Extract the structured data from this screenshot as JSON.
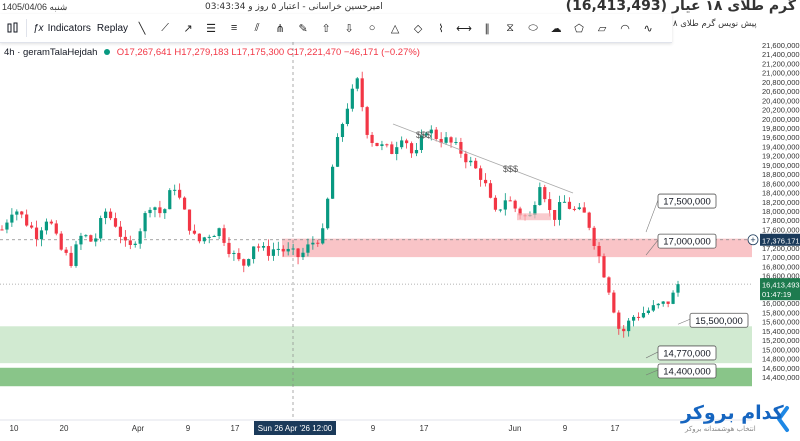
{
  "topbar": {
    "date_text": "1405/04/06 شنبه",
    "time_text": "03:43:34 ت",
    "user_text": "امیرحسین خراسانی - اعتبار ۵ روز و 03:43:34",
    "title_text": "(16,413,493) گرم طلای ۱۸ عیار"
  },
  "toolbar": {
    "indicators_label": "Indicators",
    "replay_label": "Replay",
    "subtitle": "پیش نویس گرم طلای ۸",
    "tools": [
      "cursor-icon",
      "trend-line-icon",
      "ray-icon",
      "horizontal-lines-icon",
      "fib-icon",
      "channel-icon",
      "pitchfork-icon",
      "brush-icon",
      "arrow-up-icon",
      "arrow-down-icon",
      "circle-icon",
      "triangle-icon",
      "shapes-icon",
      "path-icon",
      "extended-line-icon",
      "parallel-icon",
      "measure-icon",
      "ellipse-icon",
      "cloud-icon",
      "polygon-icon",
      "shape-icon",
      "arc-icon",
      "curve-icon"
    ]
  },
  "symbol": {
    "name": "4h · geramTalaHejdah",
    "ohlc": "O17,267,641  H17,279,183  L17,175,300  C17,221,470  −46,171 (−0.27%)"
  },
  "colors": {
    "up": "#089981",
    "down": "#f23645",
    "resistance_zone": "#f7b5b9",
    "support_zone_light": "#cce8cc",
    "support_zone_dark": "#7cbf7c",
    "price_badge": "#1b3a5a",
    "last_price_badge": "#1e7b4f"
  },
  "chart_data": {
    "type": "candlestick",
    "y_axis": {
      "min": 14200000,
      "max": 22000000,
      "ticks": [
        21600000,
        21400000,
        21200000,
        21000000,
        20800000,
        20600000,
        20400000,
        20200000,
        20000000,
        19800000,
        19600000,
        19400000,
        19200000,
        19000000,
        18800000,
        18600000,
        18400000,
        18200000,
        18000000,
        17800000,
        17600000,
        17400000,
        17200000,
        17000000,
        16800000,
        16600000,
        16400000,
        16200000,
        16000000,
        15800000,
        15600000,
        15400000,
        15200000,
        15000000,
        14800000,
        14600000,
        14400000
      ],
      "tick_labels": [
        "21,600,000",
        "21,400,000",
        "21,200,000",
        "21,000,000",
        "20,800,000",
        "20,600,000",
        "20,400,000",
        "20,200,000",
        "20,000,000",
        "19,800,000",
        "19,600,000",
        "19,400,000",
        "19,200,000",
        "19,000,000",
        "18,800,000",
        "18,600,000",
        "18,400,000",
        "18,200,000",
        "18,000,000",
        "17,800,000",
        "17,600,000",
        "17,400,000",
        "17,200,000",
        "17,000,000",
        "16,800,000",
        "16,600,000",
        "16,400,000",
        "16,200,000",
        "16,000,000",
        "15,800,000",
        "15,600,000",
        "15,400,000",
        "15,200,000",
        "15,000,000",
        "14,800,000",
        "14,600,000",
        "14,400,000"
      ]
    },
    "x_axis_labels": [
      "10",
      "20",
      "Apr",
      "9",
      "17",
      "Sun 26 Apr '26  12:00",
      "9",
      "17",
      "Jun",
      "9",
      "17"
    ],
    "crosshair_time_label": "Sun 26 Apr '26  12:00",
    "price_levels": [
      {
        "label": "17,500,000",
        "value": 17500000
      },
      {
        "label": "17,000,000",
        "value": 17000000
      },
      {
        "label": "15,500,000",
        "value": 15500000
      },
      {
        "label": "14,770,000",
        "value": 14770000
      },
      {
        "label": "14,400,000",
        "value": 14400000
      }
    ],
    "zones": [
      {
        "name": "resistance",
        "from": 17000000,
        "to": 17400000
      },
      {
        "name": "support",
        "from": 14700000,
        "to": 15500000
      },
      {
        "name": "support-strong",
        "from": 14200000,
        "to": 14600000
      }
    ],
    "crosshair_price_label": "17,376,171",
    "last_price_label": "16,413,493",
    "last_price_timer": "01:47:19",
    "dollar_marks": [
      "$$$",
      "$$$"
    ],
    "anchor_series": [
      17600000,
      18100000,
      17800000,
      17500000,
      17900000,
      17200000,
      16900000,
      17500000,
      17300000,
      18000000,
      17700000,
      17100000,
      17600000,
      18200000,
      17900000,
      18600000,
      17900000,
      17300000,
      17500000,
      17600000,
      17100000,
      16800000,
      17300000,
      17100000,
      17200000,
      17100000,
      17000000,
      17300000,
      17500000,
      19200000,
      20200000,
      20800000,
      19600000,
      19400000,
      19300000,
      19700000,
      19100000,
      19800000,
      19600000,
      19500000,
      19300000,
      19000000,
      18700000,
      17900000,
      18300000,
      18000000,
      17800000,
      18700000,
      17800000,
      18200000,
      18000000,
      17900000,
      17100000,
      16300000,
      15300000,
      15700000,
      15800000,
      15900000,
      16000000,
      16300000
    ],
    "candle_count": 138,
    "first_candle_value": 17600000,
    "last_candle_value": 16413493
  },
  "brand": {
    "name": "کدام بروکر",
    "tagline": "انتخاب هوشمندانه بروکر"
  }
}
